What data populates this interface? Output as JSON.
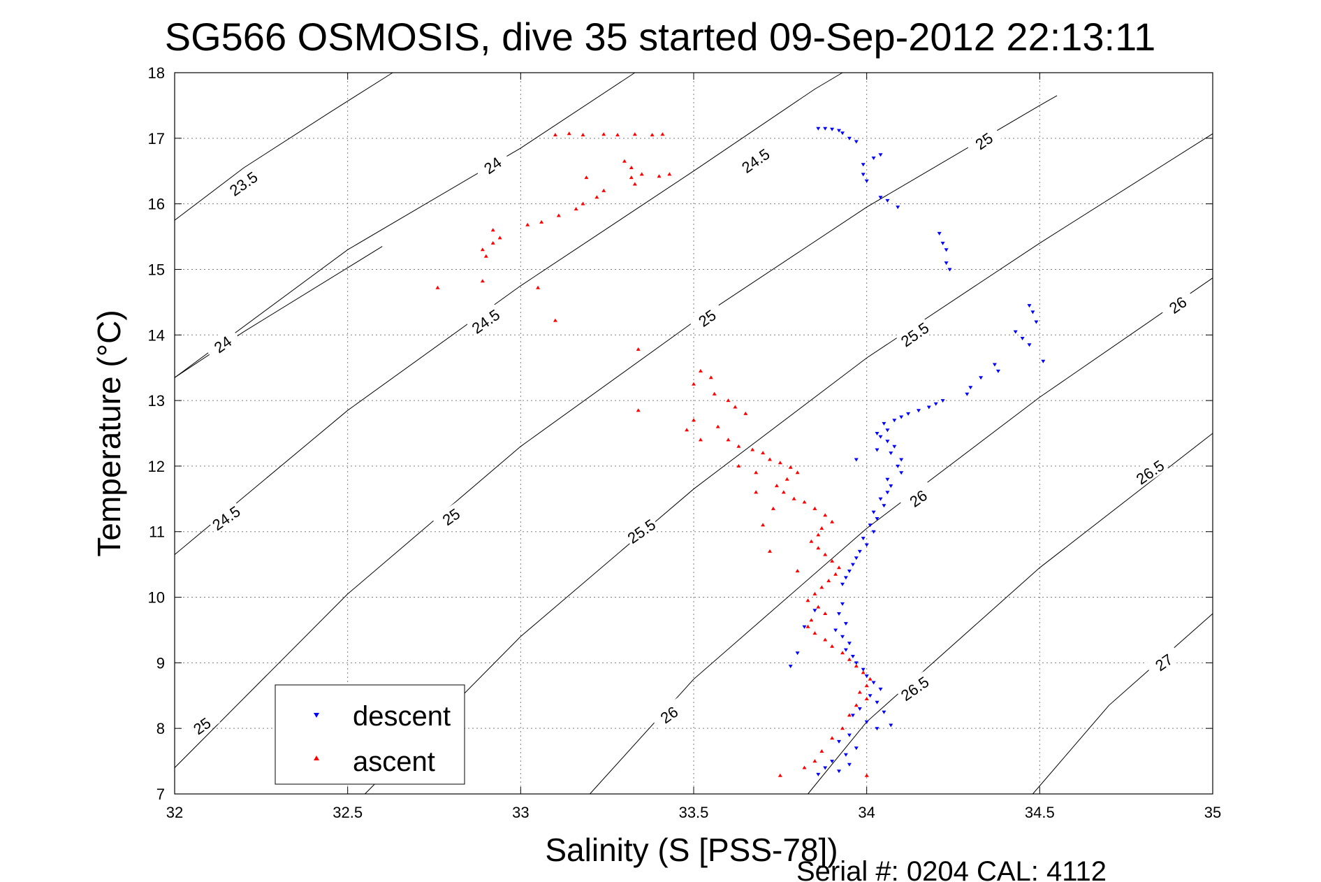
{
  "chart_data": {
    "type": "scatter",
    "title": "SG566 OSMOSIS, dive 35 started 09-Sep-2012 22:13:11",
    "xlabel": "Salinity (S [PSS-78])",
    "ylabel": "Temperature (°C)",
    "xlim": [
      32,
      35
    ],
    "ylim": [
      7,
      18
    ],
    "xticks": [
      32,
      32.5,
      33,
      33.5,
      34,
      34.5,
      35
    ],
    "yticks": [
      7,
      8,
      9,
      10,
      11,
      12,
      13,
      14,
      15,
      16,
      17,
      18
    ],
    "grid": true,
    "legend_position": "bottom-left",
    "footer": "Serial #: 0204  CAL: 4112",
    "contours": [
      {
        "level": "23.5",
        "points": [
          [
            32.0,
            15.75
          ],
          [
            32.2,
            16.55
          ],
          [
            32.45,
            17.4
          ],
          [
            32.63,
            18.0
          ]
        ],
        "label_at": [
          32.2,
          16.3
        ]
      },
      {
        "level": "24",
        "points": [
          [
            32.0,
            13.35
          ],
          [
            32.5,
            15.3
          ],
          [
            33.0,
            16.85
          ],
          [
            33.33,
            18.0
          ]
        ],
        "label_at": [
          33.97,
          16.6
        ]
      },
      {
        "level": "24",
        "points": [
          [
            32.0,
            13.35
          ],
          [
            32.2,
            14.05
          ],
          [
            32.6,
            15.35
          ]
        ],
        "label_at": [
          32.14,
          13.85
        ]
      },
      {
        "level": "24.5",
        "points": [
          [
            32.0,
            10.65
          ],
          [
            32.5,
            12.85
          ],
          [
            33.0,
            14.75
          ],
          [
            33.5,
            16.5
          ],
          [
            33.85,
            17.75
          ],
          [
            33.93,
            18.0
          ]
        ],
        "label_at": [
          33.2,
          14.85
        ]
      },
      {
        "level": "25",
        "points": [
          [
            32.0,
            7.4
          ],
          [
            32.5,
            10.05
          ],
          [
            33.0,
            12.3
          ],
          [
            33.5,
            14.2
          ],
          [
            34.0,
            15.95
          ],
          [
            34.5,
            17.5
          ],
          [
            34.55,
            17.65
          ]
        ],
        "label_at": [
          33.3,
          11.22
        ]
      },
      {
        "level": "25.5",
        "points": [
          [
            32.55,
            7.0
          ],
          [
            33.0,
            9.4
          ],
          [
            33.5,
            11.65
          ],
          [
            34.0,
            13.65
          ],
          [
            34.5,
            15.4
          ],
          [
            35.0,
            17.07
          ]
        ],
        "label_at": [
          33.35,
          11.8
        ]
      },
      {
        "level": "26",
        "points": [
          [
            33.2,
            7.0
          ],
          [
            33.5,
            8.75
          ],
          [
            34.0,
            11.05
          ],
          [
            34.5,
            13.05
          ],
          [
            35.0,
            14.87
          ]
        ],
        "label_at": [
          34.15,
          11.5
        ]
      },
      {
        "level": "26.5",
        "points": [
          [
            33.83,
            7.0
          ],
          [
            34.0,
            8.1
          ],
          [
            34.5,
            10.45
          ],
          [
            35.0,
            12.5
          ]
        ],
        "label_at": [
          34.17,
          8.4
        ]
      },
      {
        "level": "27",
        "points": [
          [
            34.48,
            7.0
          ],
          [
            34.7,
            8.35
          ],
          [
            35.0,
            9.75
          ]
        ],
        "label_at": [
          34.88,
          9.0
        ]
      }
    ],
    "contour_labels": [
      {
        "text": "23.5",
        "x": 32.2,
        "y": 16.3
      },
      {
        "text": "24",
        "x": 32.14,
        "y": 13.85
      },
      {
        "text": "24",
        "x": 32.92,
        "y": 16.58
      },
      {
        "text": "24.5",
        "x": 32.15,
        "y": 11.2
      },
      {
        "text": "24.5",
        "x": 32.9,
        "y": 14.2
      },
      {
        "text": "24.5",
        "x": 33.68,
        "y": 16.65
      },
      {
        "text": "25",
        "x": 32.08,
        "y": 8.03
      },
      {
        "text": "25",
        "x": 32.8,
        "y": 11.22
      },
      {
        "text": "25",
        "x": 33.54,
        "y": 14.25
      },
      {
        "text": "25",
        "x": 34.34,
        "y": 16.95
      },
      {
        "text": "25.5",
        "x": 33.35,
        "y": 11.0
      },
      {
        "text": "25.5",
        "x": 34.14,
        "y": 14.0
      },
      {
        "text": "26",
        "x": 33.43,
        "y": 8.2
      },
      {
        "text": "26",
        "x": 34.15,
        "y": 11.5
      },
      {
        "text": "26",
        "x": 34.9,
        "y": 14.45
      },
      {
        "text": "26.5",
        "x": 34.14,
        "y": 8.6
      },
      {
        "text": "26.5",
        "x": 34.82,
        "y": 11.9
      },
      {
        "text": "27",
        "x": 34.86,
        "y": 9.0
      }
    ],
    "series": [
      {
        "name": "descent",
        "color": "#0000ff",
        "marker": "triangle-down",
        "points": [
          [
            33.86,
            17.15
          ],
          [
            33.88,
            17.15
          ],
          [
            33.9,
            17.14
          ],
          [
            33.92,
            17.12
          ],
          [
            33.93,
            17.08
          ],
          [
            33.95,
            17.0
          ],
          [
            33.97,
            16.95
          ],
          [
            34.02,
            16.7
          ],
          [
            34.04,
            16.75
          ],
          [
            33.99,
            16.6
          ],
          [
            33.99,
            16.45
          ],
          [
            34.0,
            16.35
          ],
          [
            34.04,
            16.1
          ],
          [
            34.06,
            16.05
          ],
          [
            34.09,
            15.95
          ],
          [
            34.21,
            15.55
          ],
          [
            34.22,
            15.4
          ],
          [
            34.23,
            15.3
          ],
          [
            34.23,
            15.1
          ],
          [
            34.24,
            15.0
          ],
          [
            34.47,
            14.45
          ],
          [
            34.48,
            14.35
          ],
          [
            34.49,
            14.2
          ],
          [
            34.43,
            14.05
          ],
          [
            34.45,
            13.95
          ],
          [
            34.47,
            13.85
          ],
          [
            34.51,
            13.6
          ],
          [
            34.37,
            13.55
          ],
          [
            34.38,
            13.45
          ],
          [
            34.33,
            13.35
          ],
          [
            34.3,
            13.2
          ],
          [
            34.29,
            13.1
          ],
          [
            34.22,
            13.0
          ],
          [
            34.2,
            12.95
          ],
          [
            34.18,
            12.9
          ],
          [
            34.15,
            12.85
          ],
          [
            34.12,
            12.8
          ],
          [
            34.1,
            12.75
          ],
          [
            34.08,
            12.7
          ],
          [
            34.05,
            12.65
          ],
          [
            34.06,
            12.55
          ],
          [
            34.03,
            12.5
          ],
          [
            34.04,
            12.45
          ],
          [
            34.06,
            12.38
          ],
          [
            34.08,
            12.3
          ],
          [
            34.07,
            12.2
          ],
          [
            34.1,
            12.1
          ],
          [
            34.09,
            12.0
          ],
          [
            34.1,
            11.9
          ],
          [
            34.06,
            11.8
          ],
          [
            34.07,
            11.7
          ],
          [
            34.06,
            11.6
          ],
          [
            34.04,
            11.5
          ],
          [
            34.05,
            11.4
          ],
          [
            34.02,
            11.3
          ],
          [
            34.03,
            11.2
          ],
          [
            34.01,
            11.1
          ],
          [
            34.02,
            11.0
          ],
          [
            33.99,
            10.9
          ],
          [
            34.0,
            10.8
          ],
          [
            33.98,
            10.7
          ],
          [
            33.97,
            10.6
          ],
          [
            33.96,
            10.5
          ],
          [
            33.95,
            10.4
          ],
          [
            33.94,
            10.3
          ],
          [
            33.93,
            10.2
          ],
          [
            33.97,
            12.1
          ],
          [
            34.03,
            12.25
          ],
          [
            33.93,
            9.9
          ],
          [
            33.92,
            9.75
          ],
          [
            33.94,
            9.6
          ],
          [
            33.91,
            9.5
          ],
          [
            33.93,
            9.4
          ],
          [
            33.95,
            9.3
          ],
          [
            33.94,
            9.2
          ],
          [
            33.96,
            9.1
          ],
          [
            33.97,
            9.0
          ],
          [
            33.99,
            8.9
          ],
          [
            34.0,
            8.8
          ],
          [
            34.02,
            8.7
          ],
          [
            34.04,
            8.6
          ],
          [
            34.01,
            8.5
          ],
          [
            34.03,
            8.4
          ],
          [
            33.98,
            8.3
          ],
          [
            33.96,
            8.2
          ],
          [
            34.0,
            8.1
          ],
          [
            34.03,
            8.0
          ],
          [
            33.95,
            7.9
          ],
          [
            33.92,
            7.8
          ],
          [
            33.97,
            7.7
          ],
          [
            33.94,
            7.6
          ],
          [
            33.9,
            7.5
          ],
          [
            33.88,
            7.4
          ],
          [
            33.86,
            7.3
          ],
          [
            33.92,
            7.35
          ],
          [
            33.95,
            7.45
          ],
          [
            33.8,
            9.15
          ],
          [
            33.82,
            9.55
          ],
          [
            33.85,
            9.8
          ],
          [
            34.05,
            8.25
          ],
          [
            34.07,
            8.05
          ],
          [
            33.78,
            8.95
          ]
        ]
      },
      {
        "name": "ascent",
        "color": "#ff0000",
        "marker": "triangle-up",
        "points": [
          [
            33.1,
            17.05
          ],
          [
            33.14,
            17.07
          ],
          [
            33.18,
            17.05
          ],
          [
            33.24,
            17.06
          ],
          [
            33.28,
            17.05
          ],
          [
            33.33,
            17.06
          ],
          [
            33.38,
            17.05
          ],
          [
            33.41,
            17.06
          ],
          [
            33.3,
            16.65
          ],
          [
            33.32,
            16.55
          ],
          [
            33.35,
            16.45
          ],
          [
            33.4,
            16.42
          ],
          [
            33.43,
            16.45
          ],
          [
            33.32,
            16.4
          ],
          [
            33.33,
            16.3
          ],
          [
            33.19,
            16.4
          ],
          [
            33.24,
            16.2
          ],
          [
            33.22,
            16.1
          ],
          [
            33.18,
            16.0
          ],
          [
            33.16,
            15.92
          ],
          [
            33.11,
            15.82
          ],
          [
            33.06,
            15.72
          ],
          [
            33.02,
            15.68
          ],
          [
            32.92,
            15.6
          ],
          [
            32.92,
            15.4
          ],
          [
            32.94,
            15.48
          ],
          [
            32.89,
            15.3
          ],
          [
            32.9,
            15.2
          ],
          [
            32.76,
            14.72
          ],
          [
            32.89,
            14.82
          ],
          [
            33.05,
            14.72
          ],
          [
            33.1,
            14.22
          ],
          [
            33.34,
            13.78
          ],
          [
            33.34,
            12.85
          ],
          [
            33.52,
            13.45
          ],
          [
            33.55,
            13.35
          ],
          [
            33.5,
            13.25
          ],
          [
            33.56,
            13.1
          ],
          [
            33.6,
            13.0
          ],
          [
            33.62,
            12.9
          ],
          [
            33.65,
            12.8
          ],
          [
            33.5,
            12.7
          ],
          [
            33.48,
            12.55
          ],
          [
            33.52,
            12.4
          ],
          [
            33.57,
            12.6
          ],
          [
            33.6,
            12.4
          ],
          [
            33.63,
            12.3
          ],
          [
            33.67,
            12.25
          ],
          [
            33.7,
            12.2
          ],
          [
            33.72,
            12.1
          ],
          [
            33.75,
            12.05
          ],
          [
            33.78,
            11.98
          ],
          [
            33.8,
            11.9
          ],
          [
            33.77,
            11.8
          ],
          [
            33.74,
            11.7
          ],
          [
            33.76,
            11.6
          ],
          [
            33.79,
            11.5
          ],
          [
            33.82,
            11.45
          ],
          [
            33.85,
            11.35
          ],
          [
            33.88,
            11.25
          ],
          [
            33.9,
            11.15
          ],
          [
            33.87,
            11.05
          ],
          [
            33.86,
            10.95
          ],
          [
            33.84,
            10.85
          ],
          [
            33.86,
            10.75
          ],
          [
            33.88,
            10.65
          ],
          [
            33.9,
            10.55
          ],
          [
            33.92,
            10.45
          ],
          [
            33.91,
            10.35
          ],
          [
            33.89,
            10.25
          ],
          [
            33.87,
            10.15
          ],
          [
            33.85,
            10.05
          ],
          [
            33.83,
            9.95
          ],
          [
            33.86,
            9.85
          ],
          [
            33.88,
            9.75
          ],
          [
            33.84,
            9.65
          ],
          [
            33.83,
            9.55
          ],
          [
            33.85,
            9.45
          ],
          [
            33.88,
            9.35
          ],
          [
            33.9,
            9.25
          ],
          [
            33.93,
            9.15
          ],
          [
            33.95,
            9.05
          ],
          [
            33.97,
            8.95
          ],
          [
            33.99,
            8.85
          ],
          [
            34.01,
            8.75
          ],
          [
            34.0,
            8.65
          ],
          [
            33.98,
            8.55
          ],
          [
            34.0,
            8.45
          ],
          [
            33.97,
            8.35
          ],
          [
            33.95,
            8.2
          ],
          [
            33.93,
            8.0
          ],
          [
            33.9,
            7.85
          ],
          [
            33.87,
            7.65
          ],
          [
            33.85,
            7.5
          ],
          [
            33.82,
            7.4
          ],
          [
            33.75,
            7.28
          ],
          [
            34.0,
            7.28
          ],
          [
            33.63,
            12.0
          ],
          [
            33.68,
            11.6
          ],
          [
            33.7,
            11.1
          ],
          [
            33.72,
            10.7
          ],
          [
            33.8,
            10.4
          ],
          [
            33.68,
            11.9
          ],
          [
            33.73,
            11.35
          ]
        ]
      }
    ]
  }
}
